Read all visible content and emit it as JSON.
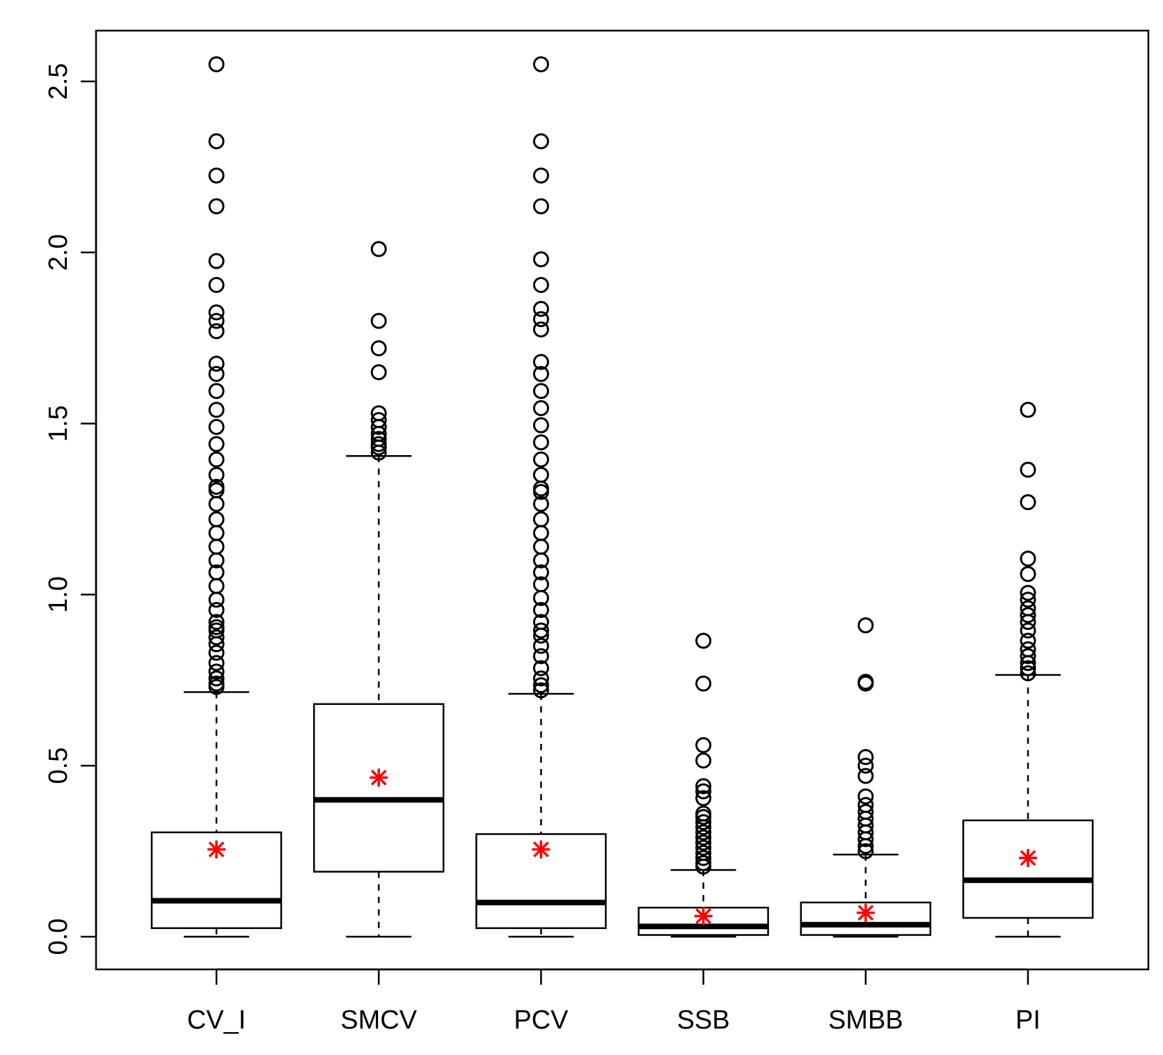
{
  "chart_data": {
    "type": "boxplot",
    "title": "",
    "xlabel": "",
    "ylabel": "",
    "ylim": [
      -0.1,
      2.65
    ],
    "yticks": [
      "0.0",
      "0.5",
      "1.0",
      "1.5",
      "2.0",
      "2.5"
    ],
    "categories": [
      "CV_I",
      "SMCV",
      "PCV",
      "SSB",
      "SMBB",
      "PI"
    ],
    "colors": {
      "box": "#000000",
      "mean_marker": "#ff0000",
      "outlier": "#000000",
      "background": "#ffffff"
    },
    "boxes": [
      {
        "name": "CV_I",
        "whisker_low": 0.0,
        "q1": 0.025,
        "median": 0.105,
        "q3": 0.305,
        "whisker_high": 0.715,
        "mean": 0.255,
        "outliers": [
          0.73,
          0.74,
          0.755,
          0.775,
          0.8,
          0.83,
          0.855,
          0.875,
          0.895,
          0.905,
          0.92,
          0.955,
          0.985,
          1.025,
          1.065,
          1.1,
          1.14,
          1.18,
          1.22,
          1.265,
          1.305,
          1.315,
          1.35,
          1.395,
          1.44,
          1.49,
          1.54,
          1.595,
          1.645,
          1.675,
          1.77,
          1.8,
          1.825,
          1.905,
          1.975,
          2.135,
          2.225,
          2.325,
          2.55
        ]
      },
      {
        "name": "SMCV",
        "whisker_low": 0.0,
        "q1": 0.19,
        "median": 0.4,
        "q3": 0.68,
        "whisker_high": 1.405,
        "mean": 0.465,
        "outliers": [
          1.415,
          1.43,
          1.44,
          1.455,
          1.47,
          1.49,
          1.51,
          1.53,
          1.65,
          1.72,
          1.8,
          2.01
        ]
      },
      {
        "name": "PCV",
        "whisker_low": 0.0,
        "q1": 0.025,
        "median": 0.1,
        "q3": 0.3,
        "whisker_high": 0.71,
        "mean": 0.255,
        "outliers": [
          0.72,
          0.735,
          0.755,
          0.785,
          0.82,
          0.85,
          0.88,
          0.895,
          0.92,
          0.955,
          0.99,
          1.03,
          1.065,
          1.1,
          1.14,
          1.18,
          1.22,
          1.265,
          1.3,
          1.31,
          1.35,
          1.395,
          1.445,
          1.495,
          1.545,
          1.595,
          1.645,
          1.68,
          1.775,
          1.805,
          1.835,
          1.905,
          1.98,
          2.135,
          2.225,
          2.325,
          2.55
        ]
      },
      {
        "name": "SSB",
        "whisker_low": 0.0,
        "q1": 0.005,
        "median": 0.03,
        "q3": 0.085,
        "whisker_high": 0.195,
        "mean": 0.06,
        "outliers": [
          0.205,
          0.215,
          0.23,
          0.245,
          0.26,
          0.275,
          0.29,
          0.305,
          0.32,
          0.335,
          0.35,
          0.36,
          0.405,
          0.425,
          0.44,
          0.515,
          0.56,
          0.74,
          0.865
        ]
      },
      {
        "name": "SMBB",
        "whisker_low": 0.0,
        "q1": 0.005,
        "median": 0.035,
        "q3": 0.1,
        "whisker_high": 0.24,
        "mean": 0.07,
        "outliers": [
          0.25,
          0.265,
          0.285,
          0.305,
          0.325,
          0.345,
          0.365,
          0.385,
          0.41,
          0.47,
          0.5,
          0.525,
          0.74,
          0.745,
          0.91
        ]
      },
      {
        "name": "PI",
        "whisker_low": 0.0,
        "q1": 0.055,
        "median": 0.165,
        "q3": 0.34,
        "whisker_high": 0.765,
        "mean": 0.23,
        "outliers": [
          0.77,
          0.785,
          0.8,
          0.82,
          0.84,
          0.865,
          0.895,
          0.92,
          0.94,
          0.96,
          0.985,
          1.005,
          1.06,
          1.105,
          1.27,
          1.365,
          1.54
        ]
      }
    ]
  }
}
